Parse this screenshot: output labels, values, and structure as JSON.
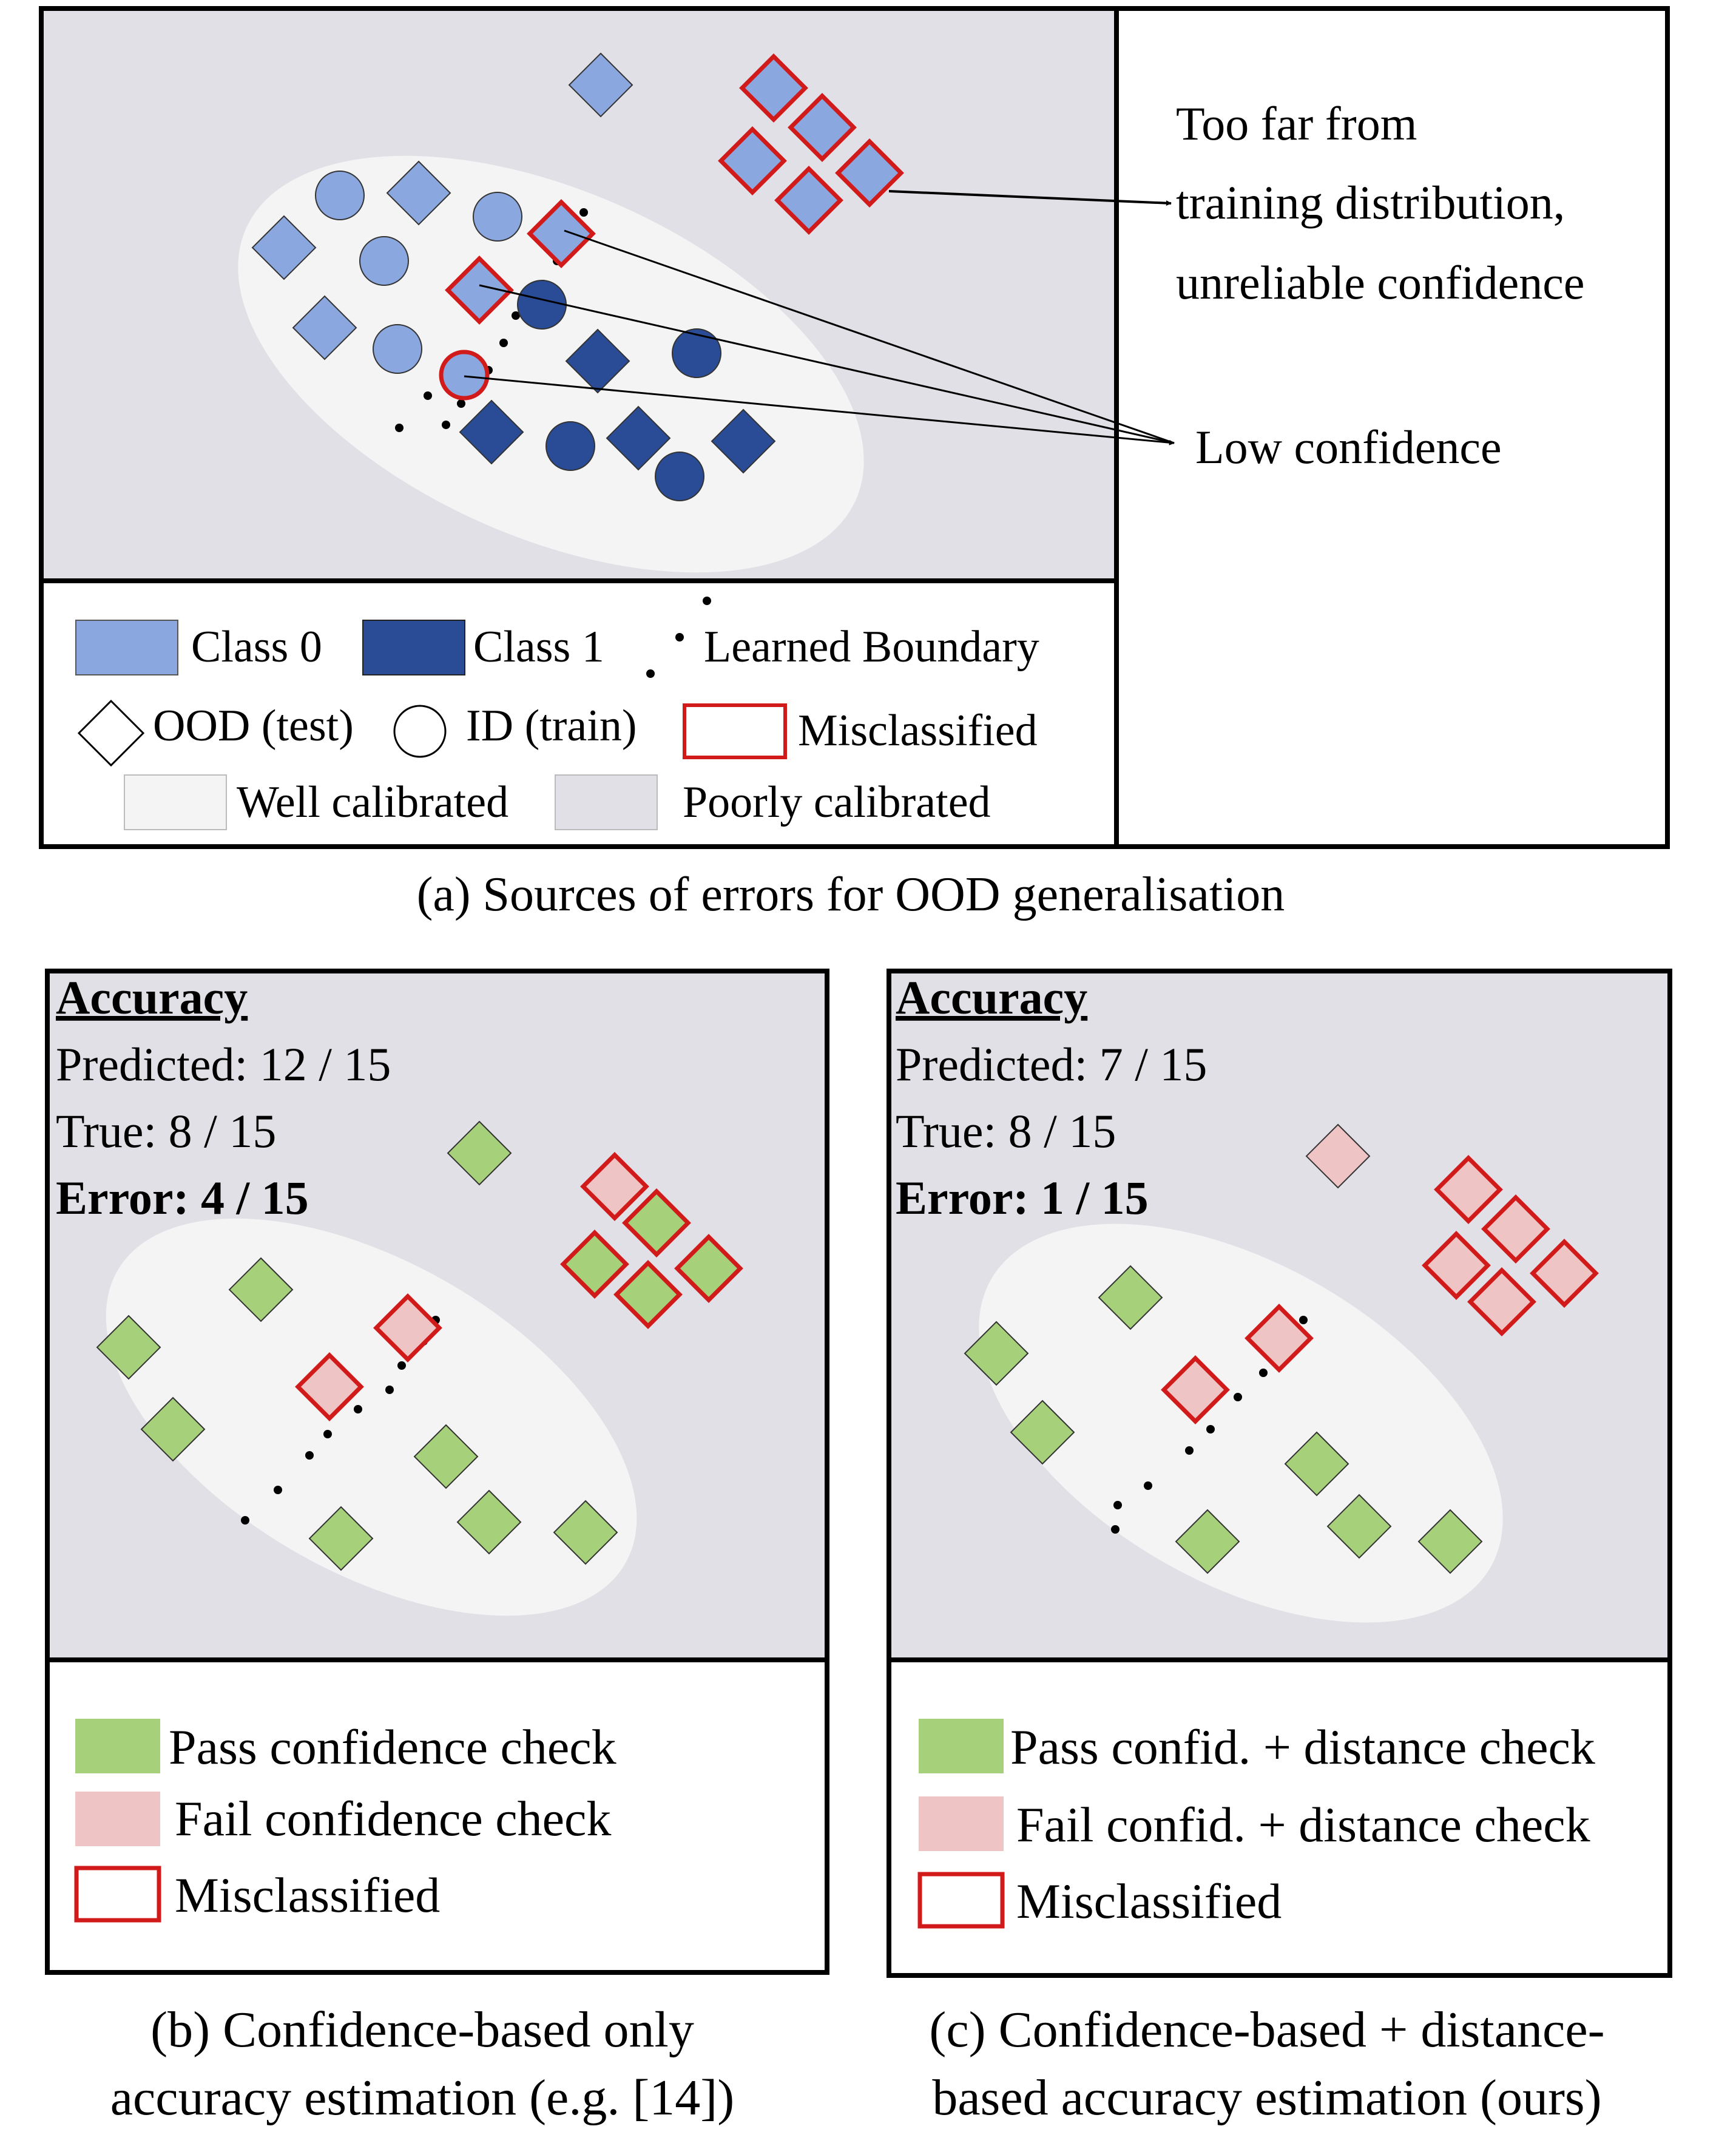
{
  "colors": {
    "class0": "#8aa8df",
    "class1": "#2a4b96",
    "misclassified": "#d11a1a",
    "pass": "#a6d07a",
    "fail": "#eec4c4",
    "poorly_calibrated_bg": "#e0e0e6",
    "well_calibrated_bg": "#f4f4f4",
    "panel_border": "#000000"
  },
  "panel_a": {
    "caption": "(a) Sources of errors for OOD generalisation",
    "annotation_far": [
      "Too far from",
      "training distribution,",
      "unreliable confidence"
    ],
    "annotation_low": "Low confidence",
    "legend": {
      "class0": "Class 0",
      "class1": "Class 1",
      "boundary": "Learned Boundary",
      "ood": "OOD (test)",
      "id": "ID (train)",
      "misclassified": "Misclassified",
      "well": "Well calibrated",
      "poor": "Poorly calibrated"
    }
  },
  "panel_b": {
    "title": "Accuracy",
    "predicted": "Predicted:  12 / 15",
    "true": "True: 8 / 15",
    "error": "Error: 4 / 15",
    "legend": {
      "pass": "Pass confidence check",
      "fail": "Fail confidence check",
      "misclassified": "Misclassified"
    },
    "caption": [
      "(b) Confidence-based only",
      "accuracy estimation (e.g. [14])"
    ]
  },
  "panel_c": {
    "title": "Accuracy",
    "predicted": "Predicted:  7 / 15",
    "true": "True: 8 / 15",
    "error": "Error: 1 / 15",
    "legend": {
      "pass": "Pass confid. + distance check",
      "fail": "Fail confid. + distance check",
      "misclassified": "Misclassified"
    },
    "caption": [
      "(c) Confidence-based + distance-",
      "based accuracy estimation (ours)"
    ]
  }
}
